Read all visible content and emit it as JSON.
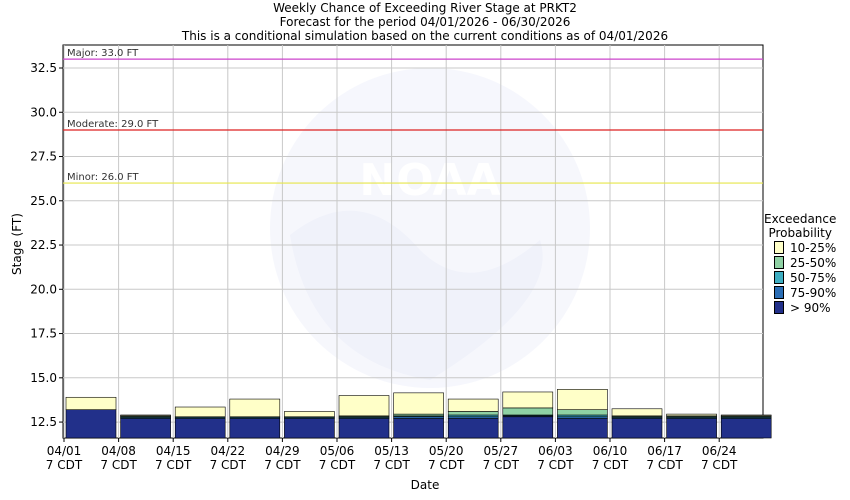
{
  "chart_data": {
    "type": "bar",
    "title": "Weekly Chance of Exceeding River Stage at PRKT2",
    "subtitle": "Forecast for the period 04/01/2026 - 06/30/2026",
    "subtitle2": "This is a conditional simulation based on the current conditions as of 04/01/2026",
    "xlabel": "Date",
    "ylabel": "Stage (FT)",
    "ylim": [
      11.6,
      33.8
    ],
    "yticks": [
      "12.5",
      "15.0",
      "17.5",
      "20.0",
      "22.5",
      "25.0",
      "27.5",
      "30.0",
      "32.5"
    ],
    "grid": true,
    "categories": [
      "04/01",
      "04/08",
      "04/15",
      "04/22",
      "04/29",
      "05/06",
      "05/13",
      "05/20",
      "05/27",
      "06/03",
      "06/10",
      "06/17",
      "06/24"
    ],
    "category_sublabel": "7 CDT",
    "flood_stages": [
      {
        "name": "Major",
        "label": "Major: 33.0 FT",
        "value": 33.0,
        "color": "#cc44cc"
      },
      {
        "name": "Moderate",
        "label": "Moderate: 29.0 FT",
        "value": 29.0,
        "color": "#dd2222"
      },
      {
        "name": "Minor",
        "label": "Minor: 26.0 FT",
        "value": 26.0,
        "color": "#e6e64a"
      }
    ],
    "legend_title": [
      "Exceedance",
      "Probability"
    ],
    "legend_position": "right",
    "series": [
      {
        "name": "> 90%",
        "color": "#22308a",
        "values": [
          13.2,
          12.7,
          12.7,
          12.7,
          12.7,
          12.7,
          12.7,
          12.7,
          12.8,
          12.7,
          12.7,
          12.7,
          12.7
        ]
      },
      {
        "name": "75-90%",
        "color": "#2a6db5",
        "values": [
          13.2,
          12.75,
          12.75,
          12.75,
          12.75,
          12.75,
          12.8,
          12.8,
          12.85,
          12.8,
          12.75,
          12.75,
          12.75
        ]
      },
      {
        "name": "50-75%",
        "color": "#3eaec2",
        "values": [
          13.2,
          12.8,
          12.8,
          12.8,
          12.8,
          12.8,
          12.85,
          12.9,
          12.9,
          12.9,
          12.8,
          12.8,
          12.8
        ]
      },
      {
        "name": "25-50%",
        "color": "#8fd1a4",
        "values": [
          13.2,
          12.85,
          12.8,
          12.8,
          12.8,
          12.85,
          12.95,
          13.1,
          13.3,
          13.2,
          12.85,
          12.85,
          12.85
        ]
      },
      {
        "name": "10-25%",
        "color": "#ffffc8",
        "values": [
          13.9,
          12.9,
          13.35,
          13.8,
          13.1,
          14.0,
          14.15,
          13.8,
          14.2,
          14.35,
          13.25,
          12.95,
          12.9
        ]
      }
    ]
  }
}
